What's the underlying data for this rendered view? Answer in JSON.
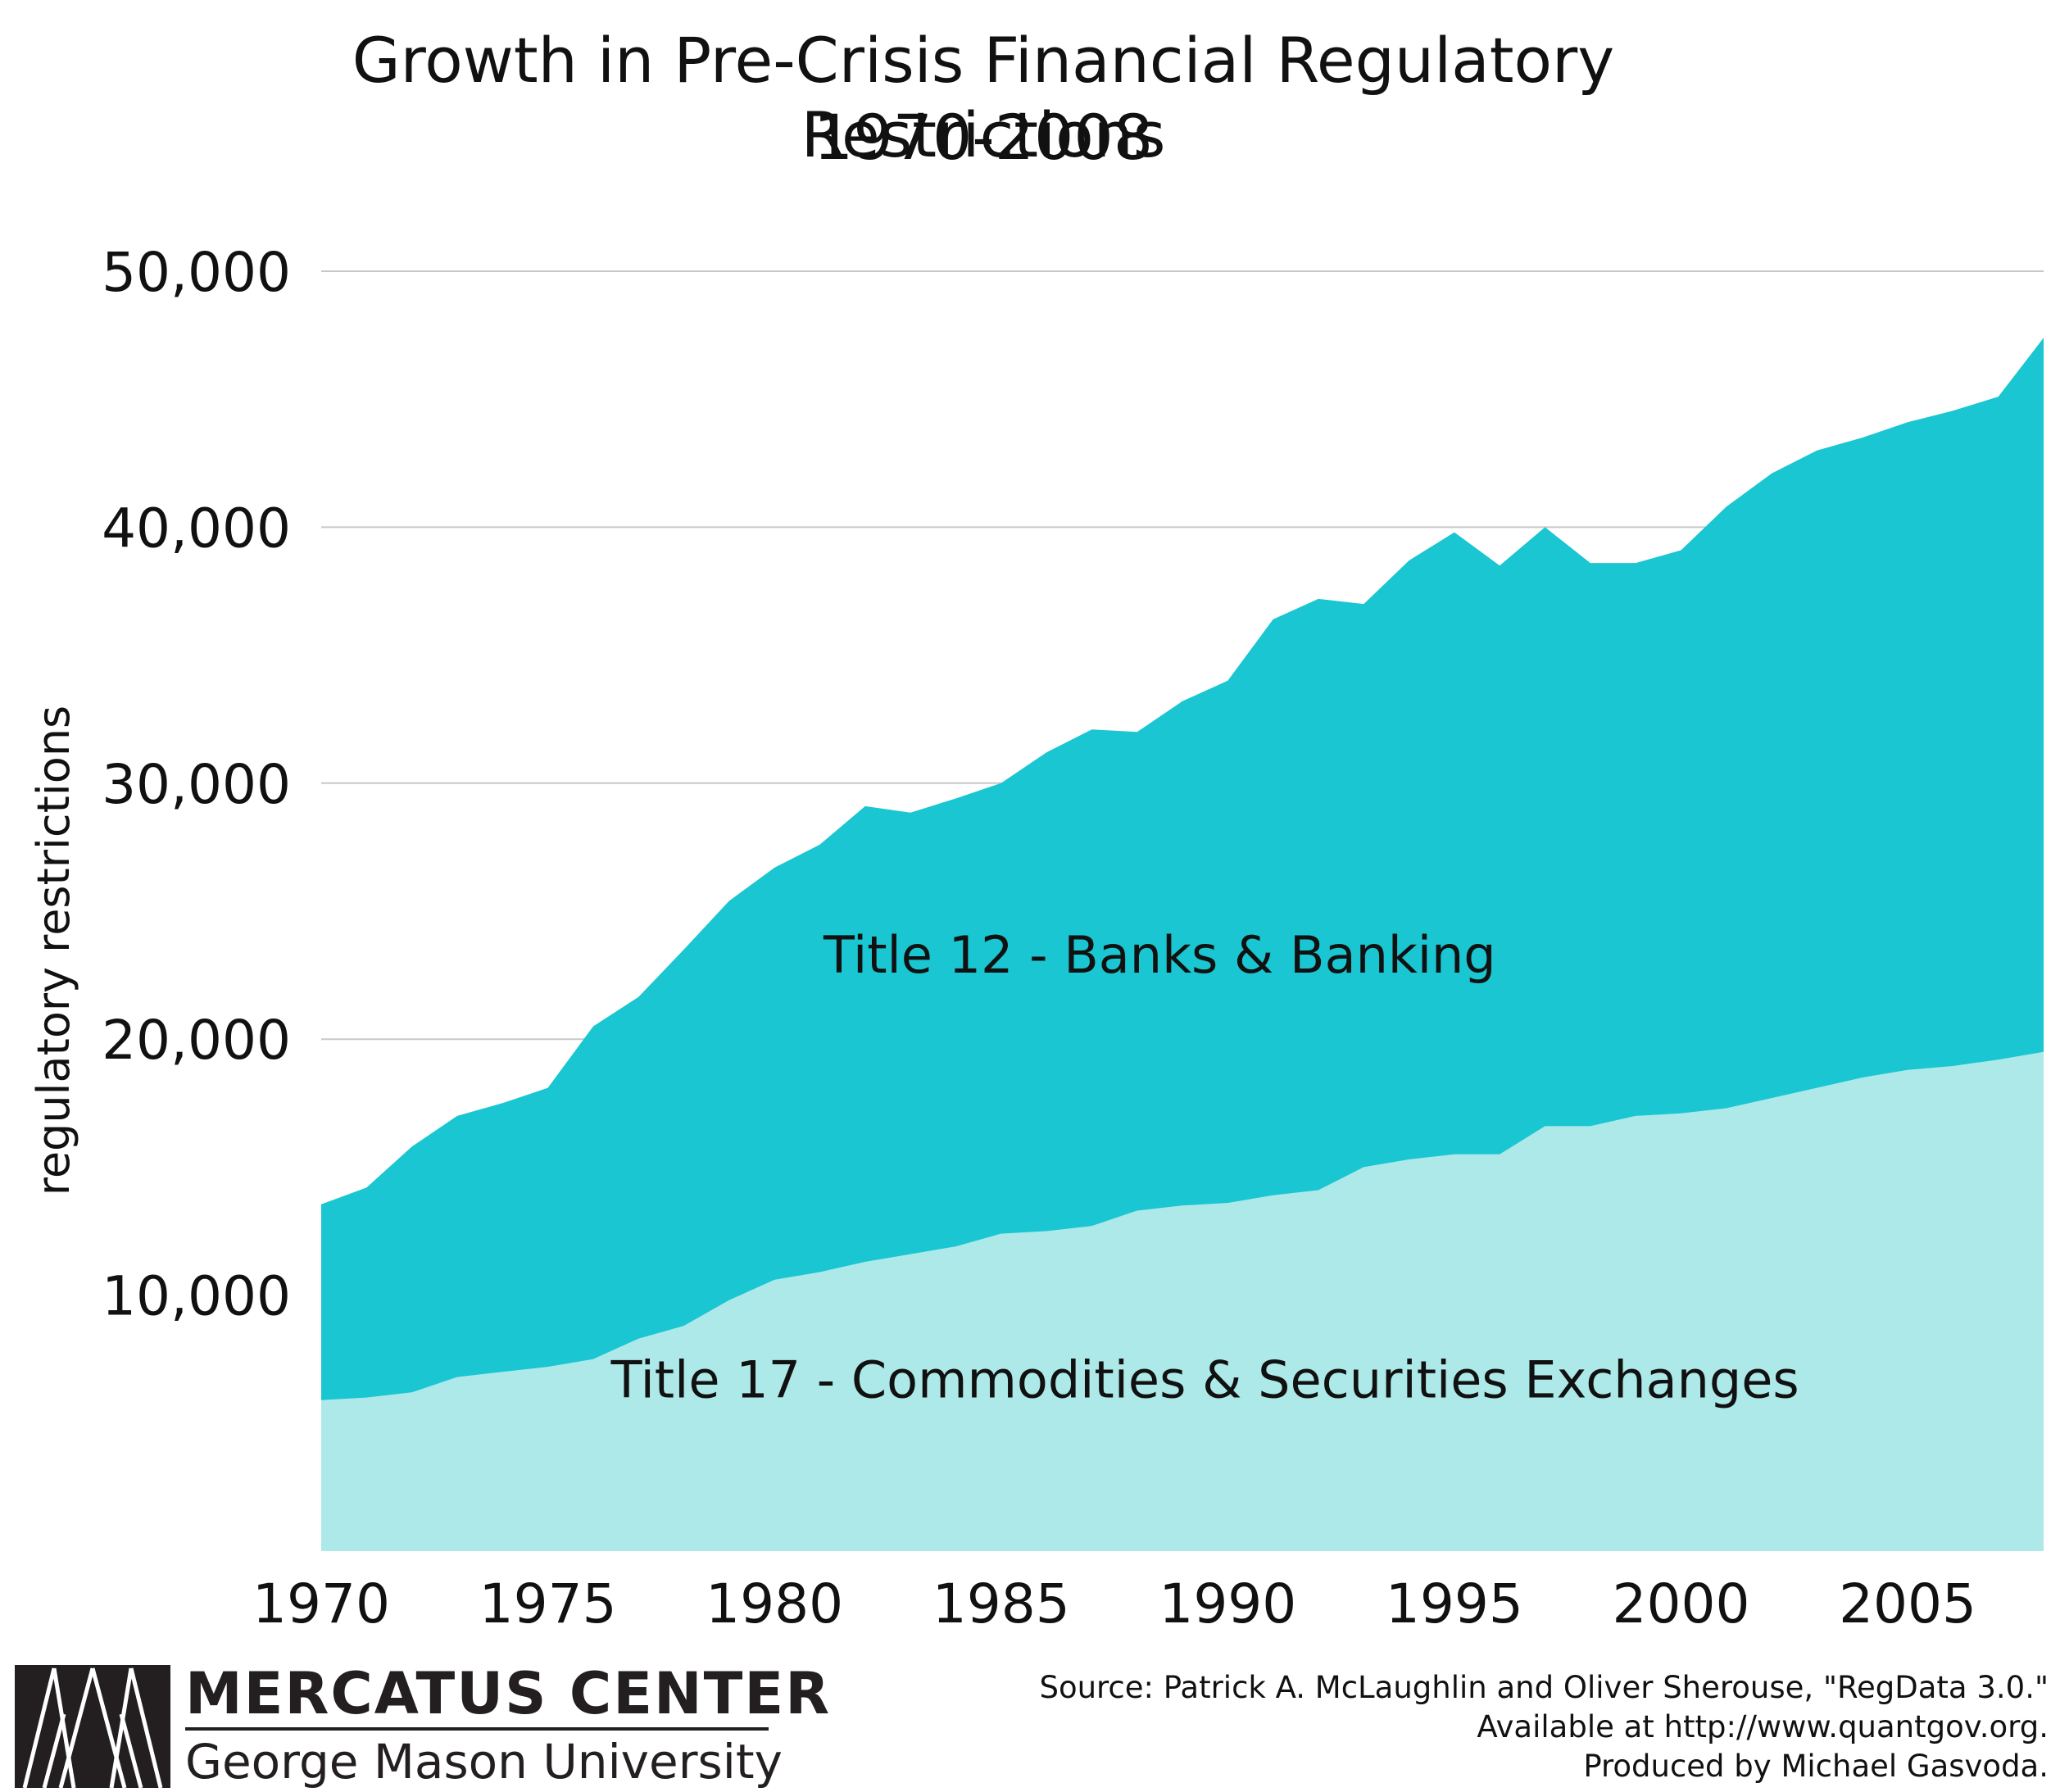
{
  "title_line1": "Growth in Pre-Crisis Financial Regulatory Restrictions",
  "title_line2": "1970-2008",
  "chart_data": {
    "type": "area",
    "stacked": true,
    "title": "Growth in Pre-Crisis Financial Regulatory Restrictions 1970-2008",
    "ylabel": "regulatory restrictions",
    "xlabel": "",
    "ylim": [
      0,
      50000
    ],
    "xlim": [
      1970,
      2008
    ],
    "yticks": [
      {
        "value": 10000,
        "label": "10,000"
      },
      {
        "value": 20000,
        "label": "20,000"
      },
      {
        "value": 30000,
        "label": "30,000"
      },
      {
        "value": 40000,
        "label": "40,000"
      },
      {
        "value": 50000,
        "label": "50,000"
      }
    ],
    "xticks": [
      {
        "value": 1970,
        "label": "1970"
      },
      {
        "value": 1975,
        "label": "1975"
      },
      {
        "value": 1980,
        "label": "1980"
      },
      {
        "value": 1985,
        "label": "1985"
      },
      {
        "value": 1990,
        "label": "1990"
      },
      {
        "value": 1995,
        "label": "1995"
      },
      {
        "value": 2000,
        "label": "2000"
      },
      {
        "value": 2005,
        "label": "2005"
      }
    ],
    "grid": true,
    "x": [
      1970,
      1971,
      1972,
      1973,
      1974,
      1975,
      1976,
      1977,
      1978,
      1979,
      1980,
      1981,
      1982,
      1983,
      1984,
      1985,
      1986,
      1987,
      1988,
      1989,
      1990,
      1991,
      1992,
      1993,
      1994,
      1995,
      1996,
      1997,
      1998,
      1999,
      2000,
      2001,
      2002,
      2003,
      2004,
      2005,
      2006,
      2007,
      2008
    ],
    "series": [
      {
        "name": "Title 17 - Commodities & Securities Exchanges",
        "color": "#ade9e8",
        "label_anchor": {
          "x": 1989.5,
          "y": 6700
        },
        "values": [
          5900,
          6000,
          6200,
          6800,
          7000,
          7200,
          7500,
          8300,
          8800,
          9800,
          10600,
          10900,
          11300,
          11600,
          11900,
          12400,
          12500,
          12700,
          13300,
          13500,
          13600,
          13900,
          14100,
          15000,
          15300,
          15500,
          15500,
          16600,
          16600,
          17000,
          17100,
          17300,
          17700,
          18100,
          18500,
          18800,
          18950,
          19200,
          19500
        ]
      },
      {
        "name": "Title 12 - Banks & Banking",
        "color": "#19c6d1",
        "label_anchor": {
          "x": 1988.5,
          "y": 23300
        },
        "values": [
          7650,
          8200,
          9600,
          10200,
          10500,
          10900,
          13000,
          13350,
          14700,
          15600,
          16100,
          16700,
          17800,
          17250,
          17500,
          17600,
          18700,
          19400,
          18700,
          19700,
          20400,
          22500,
          23100,
          22000,
          23400,
          24300,
          23000,
          23400,
          22000,
          21600,
          22000,
          23500,
          24400,
          24900,
          25000,
          25300,
          25600,
          25900,
          27900
        ]
      }
    ]
  },
  "logo": {
    "name": "MERCATUS CENTER",
    "university": "George Mason University"
  },
  "source_lines": [
    "Source: Patrick A. McLaughlin and Oliver Sherouse, \"RegData 3.0.\"",
    "Available at http://www.quantgov.org.",
    "Produced by Michael Gasvoda."
  ]
}
